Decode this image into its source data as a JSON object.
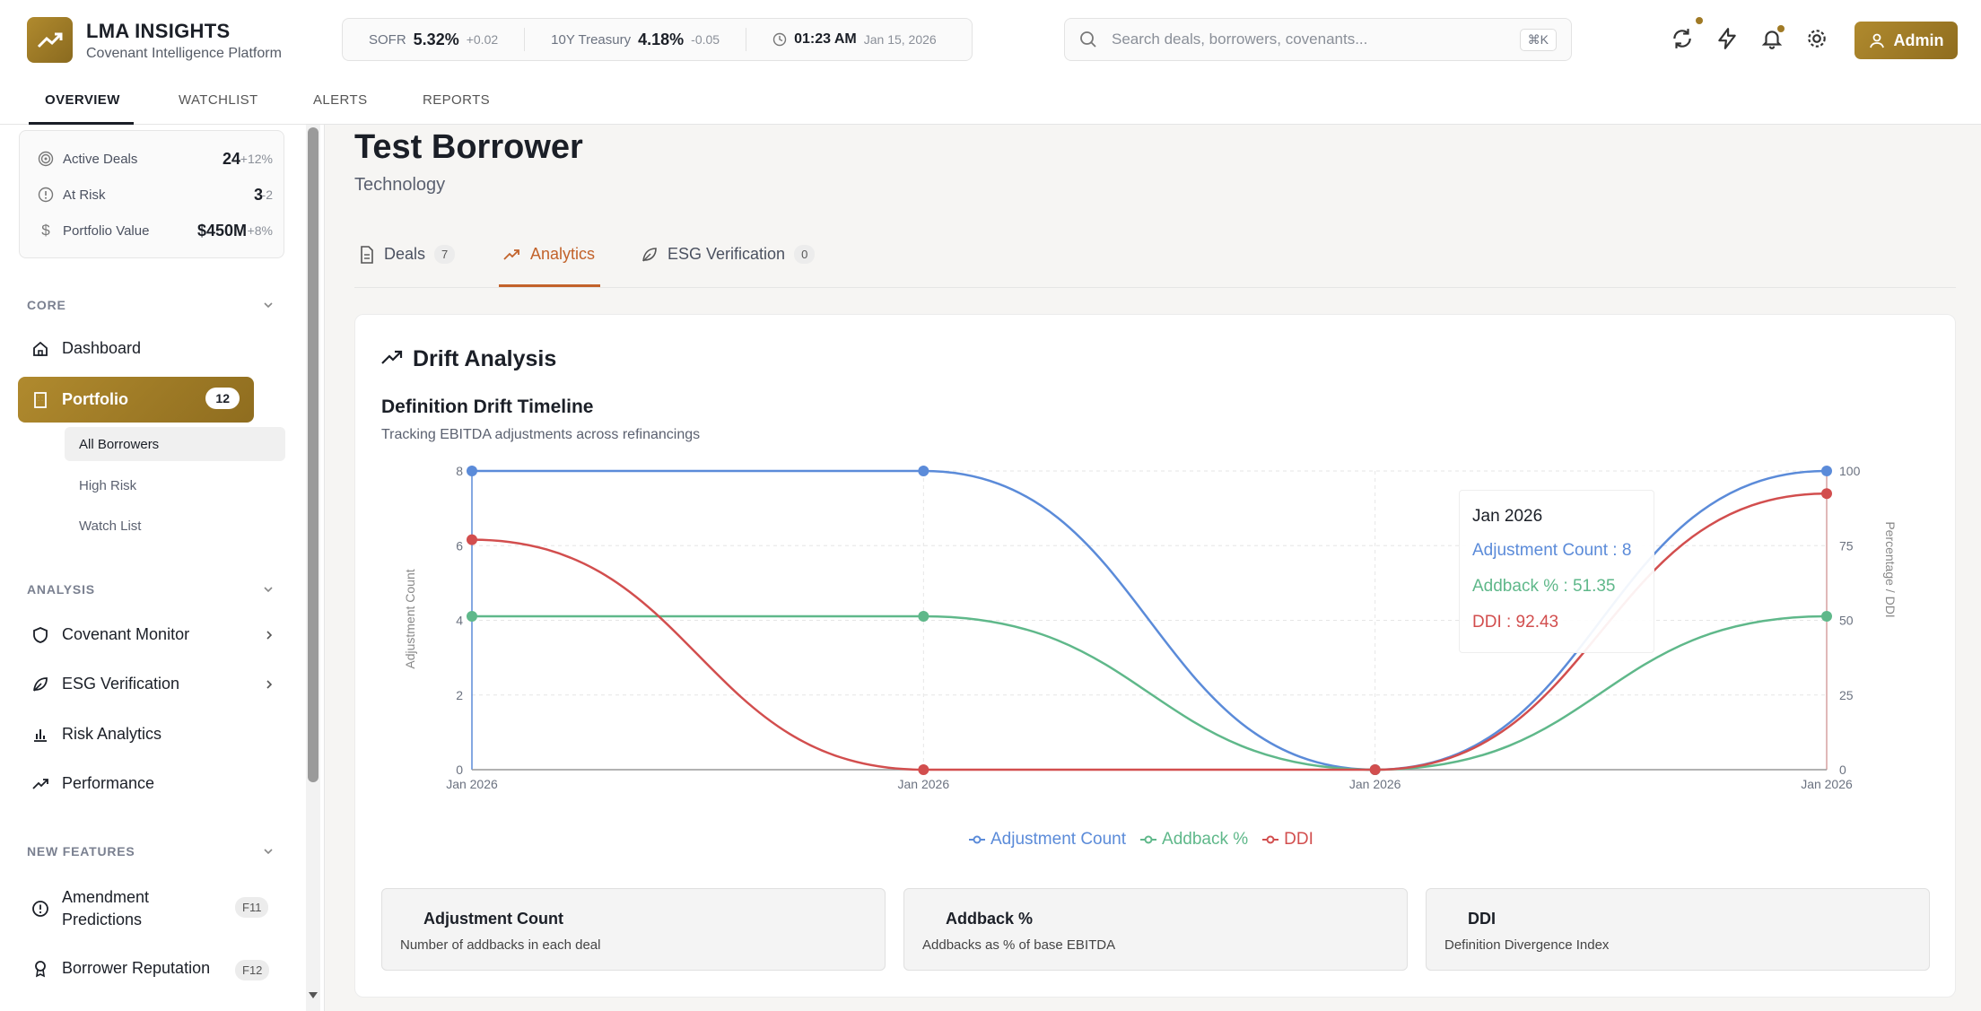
{
  "brand": {
    "title": "LMA INSIGHTS",
    "subtitle": "Covenant Intelligence Platform"
  },
  "ticker": {
    "sofr_label": "SOFR",
    "sofr_value": "5.32%",
    "sofr_change": "+0.02",
    "treasury_label": "10Y Treasury",
    "treasury_value": "4.18%",
    "treasury_change": "-0.05",
    "time": "01:23 AM",
    "date": "Jan 15, 2026"
  },
  "search": {
    "placeholder": "Search deals, borrowers, covenants...",
    "shortcut": "⌘K"
  },
  "user": {
    "label": "Admin"
  },
  "nav_tabs": [
    "OVERVIEW",
    "WATCHLIST",
    "ALERTS",
    "REPORTS"
  ],
  "stats": [
    {
      "label": "Active Deals",
      "value": "24",
      "delta": "+12%"
    },
    {
      "label": "At Risk",
      "value": "3",
      "delta": "-2"
    },
    {
      "label": "Portfolio Value",
      "value": "$450M",
      "delta": "+8%"
    }
  ],
  "sidebar": {
    "core_label": "CORE",
    "dashboard": "Dashboard",
    "portfolio": "Portfolio",
    "portfolio_count": "12",
    "sub_items": [
      "All Borrowers",
      "High Risk",
      "Watch List"
    ],
    "analysis_label": "ANALYSIS",
    "analysis_items": [
      "Covenant Monitor",
      "ESG Verification",
      "Risk Analytics",
      "Performance"
    ],
    "new_features_label": "NEW FEATURES",
    "amendment_line1": "Amendment",
    "amendment_line2": "Predictions",
    "amendment_key": "F11",
    "reputation": "Borrower Reputation",
    "reputation_key": "F12"
  },
  "borrower": {
    "name": "Test Borrower",
    "sector": "Technology"
  },
  "content_tabs": [
    {
      "label": "Deals",
      "count": "7"
    },
    {
      "label": "Analytics"
    },
    {
      "label": "ESG Verification",
      "count": "0"
    }
  ],
  "card": {
    "title": "Drift Analysis",
    "chart_title": "Definition Drift Timeline",
    "chart_subtitle": "Tracking EBITDA adjustments across refinancings"
  },
  "tooltip": {
    "date": "Jan 2026",
    "adj": "Adjustment Count : 8",
    "addback": "Addback % : 51.35",
    "ddi": "DDI : 92.43"
  },
  "colors": {
    "adjustment": "#5b8bd9",
    "addback": "#5fb88a",
    "ddi": "#d24e4e",
    "accent": "#a07a25",
    "tab_active": "#c2622a"
  },
  "chart_data": {
    "type": "line",
    "categories": [
      "Jan 2026",
      "Jan 2026",
      "Jan 2026",
      "Jan 2026"
    ],
    "left_axis": {
      "label": "Adjustment Count",
      "ticks": [
        "0",
        "2",
        "4",
        "6",
        "8"
      ],
      "range": [
        0,
        8
      ]
    },
    "right_axis": {
      "label": "Percentage / DDI",
      "ticks": [
        "0",
        "25",
        "50",
        "75",
        "100"
      ],
      "range": [
        0,
        100
      ]
    },
    "series": [
      {
        "name": "Adjustment Count",
        "axis": "left",
        "values": [
          8,
          8,
          0,
          8
        ]
      },
      {
        "name": "Addback %",
        "axis": "right",
        "values": [
          51.35,
          51.35,
          0,
          51.35
        ]
      },
      {
        "name": "DDI",
        "axis": "right",
        "values": [
          77,
          0,
          0,
          92.43
        ]
      }
    ]
  },
  "info_cards": [
    {
      "title": "Adjustment Count",
      "desc": "Number of addbacks in each deal"
    },
    {
      "title": "Addback %",
      "desc": "Addbacks as % of base EBITDA"
    },
    {
      "title": "DDI",
      "desc": "Definition Divergence Index"
    }
  ]
}
